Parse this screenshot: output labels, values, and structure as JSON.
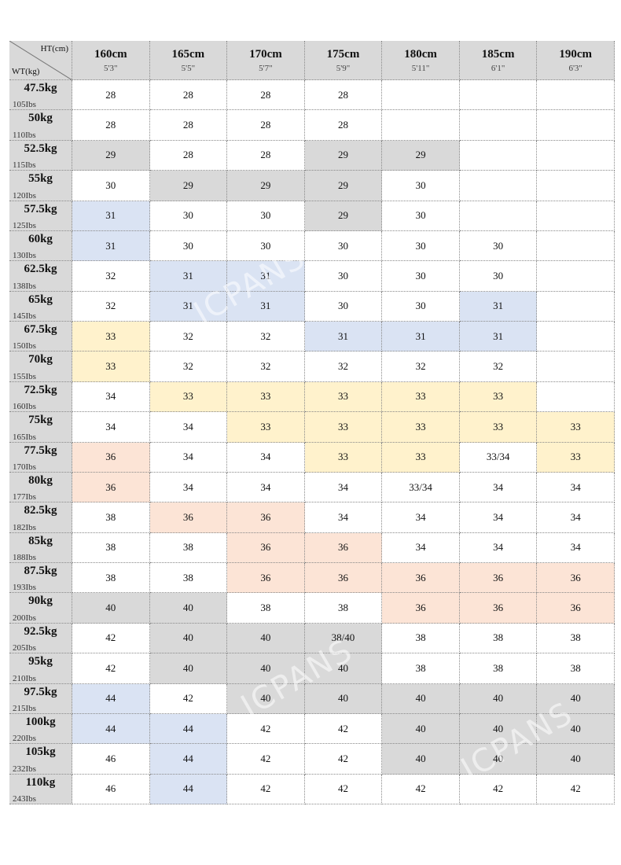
{
  "table": {
    "corner": {
      "height_label": "HT(cm)",
      "weight_label": "WT(kg)"
    },
    "columns": [
      {
        "cm": "160cm",
        "ft": "5'3\""
      },
      {
        "cm": "165cm",
        "ft": "5'5\""
      },
      {
        "cm": "170cm",
        "ft": "5'7\""
      },
      {
        "cm": "175cm",
        "ft": "5'9\""
      },
      {
        "cm": "180cm",
        "ft": "5'11\""
      },
      {
        "cm": "185cm",
        "ft": "6'1\""
      },
      {
        "cm": "190cm",
        "ft": "6'3\""
      }
    ],
    "rows": [
      {
        "kg": "47.5kg",
        "lbs": "105Ibs",
        "sizes": [
          28,
          28,
          28,
          28,
          null,
          null,
          null
        ],
        "fills": [
          null,
          null,
          null,
          null,
          null,
          null,
          null
        ]
      },
      {
        "kg": "50kg",
        "lbs": "110Ibs",
        "sizes": [
          28,
          28,
          28,
          28,
          null,
          null,
          null
        ],
        "fills": [
          null,
          null,
          null,
          null,
          null,
          null,
          null
        ]
      },
      {
        "kg": "52.5kg",
        "lbs": "115Ibs",
        "sizes": [
          29,
          28,
          28,
          29,
          29,
          null,
          null
        ],
        "fills": [
          "#d9d9d9",
          null,
          null,
          "#d9d9d9",
          "#d9d9d9",
          null,
          null
        ]
      },
      {
        "kg": "55kg",
        "lbs": "120Ibs",
        "sizes": [
          30,
          29,
          29,
          29,
          30,
          null,
          null
        ],
        "fills": [
          null,
          "#d9d9d9",
          "#d9d9d9",
          "#d9d9d9",
          null,
          null,
          null
        ]
      },
      {
        "kg": "57.5kg",
        "lbs": "125Ibs",
        "sizes": [
          31,
          30,
          30,
          29,
          30,
          null,
          null
        ],
        "fills": [
          "#dae3f3",
          null,
          null,
          "#d9d9d9",
          null,
          null,
          null
        ]
      },
      {
        "kg": "60kg",
        "lbs": "130Ibs",
        "sizes": [
          31,
          30,
          30,
          30,
          30,
          30,
          null
        ],
        "fills": [
          "#dae3f3",
          null,
          null,
          null,
          null,
          null,
          null
        ]
      },
      {
        "kg": "62.5kg",
        "lbs": "138Ibs",
        "sizes": [
          32,
          31,
          31,
          30,
          30,
          30,
          null
        ],
        "fills": [
          null,
          "#dae3f3",
          "#dae3f3",
          null,
          null,
          null,
          null
        ]
      },
      {
        "kg": "65kg",
        "lbs": "145Ibs",
        "sizes": [
          32,
          31,
          31,
          30,
          30,
          31,
          null
        ],
        "fills": [
          null,
          "#dae3f3",
          "#dae3f3",
          null,
          null,
          "#dae3f3",
          null
        ]
      },
      {
        "kg": "67.5kg",
        "lbs": "150Ibs",
        "sizes": [
          33,
          32,
          32,
          31,
          31,
          31,
          null
        ],
        "fills": [
          "#fff2cc",
          null,
          null,
          "#dae3f3",
          "#dae3f3",
          "#dae3f3",
          null
        ]
      },
      {
        "kg": "70kg",
        "lbs": "155Ibs",
        "sizes": [
          33,
          32,
          32,
          32,
          32,
          32,
          null
        ],
        "fills": [
          "#fff2cc",
          null,
          null,
          null,
          null,
          null,
          null
        ]
      },
      {
        "kg": "72.5kg",
        "lbs": "160Ibs",
        "sizes": [
          34,
          33,
          33,
          33,
          33,
          33,
          null
        ],
        "fills": [
          null,
          "#fff2cc",
          "#fff2cc",
          "#fff2cc",
          "#fff2cc",
          "#fff2cc",
          null
        ]
      },
      {
        "kg": "75kg",
        "lbs": "165Ibs",
        "sizes": [
          34,
          34,
          33,
          33,
          33,
          33,
          33
        ],
        "fills": [
          null,
          null,
          "#fff2cc",
          "#fff2cc",
          "#fff2cc",
          "#fff2cc",
          "#fff2cc"
        ]
      },
      {
        "kg": "77.5kg",
        "lbs": "170Ibs",
        "sizes": [
          36,
          34,
          34,
          33,
          33,
          "33/34",
          33
        ],
        "fills": [
          "#fce4d6",
          null,
          null,
          "#fff2cc",
          "#fff2cc",
          null,
          "#fff2cc"
        ]
      },
      {
        "kg": "80kg",
        "lbs": "177Ibs",
        "sizes": [
          36,
          34,
          34,
          34,
          "33/34",
          34,
          34
        ],
        "fills": [
          "#fce4d6",
          null,
          null,
          null,
          null,
          null,
          null
        ]
      },
      {
        "kg": "82.5kg",
        "lbs": "182Ibs",
        "sizes": [
          38,
          36,
          36,
          34,
          34,
          34,
          34
        ],
        "fills": [
          null,
          "#fce4d6",
          "#fce4d6",
          null,
          null,
          null,
          null
        ]
      },
      {
        "kg": "85kg",
        "lbs": "188Ibs",
        "sizes": [
          38,
          38,
          36,
          36,
          34,
          34,
          34
        ],
        "fills": [
          null,
          null,
          "#fce4d6",
          "#fce4d6",
          null,
          null,
          null
        ]
      },
      {
        "kg": "87.5kg",
        "lbs": "193Ibs",
        "sizes": [
          38,
          38,
          36,
          36,
          36,
          36,
          36
        ],
        "fills": [
          null,
          null,
          "#fce4d6",
          "#fce4d6",
          "#fce4d6",
          "#fce4d6",
          "#fce4d6"
        ]
      },
      {
        "kg": "90kg",
        "lbs": "200Ibs",
        "sizes": [
          40,
          40,
          38,
          38,
          36,
          36,
          36
        ],
        "fills": [
          "#d9d9d9",
          "#d9d9d9",
          null,
          null,
          "#fce4d6",
          "#fce4d6",
          "#fce4d6"
        ]
      },
      {
        "kg": "92.5kg",
        "lbs": "205Ibs",
        "sizes": [
          42,
          40,
          40,
          "38/40",
          38,
          38,
          38
        ],
        "fills": [
          null,
          "#d9d9d9",
          "#d9d9d9",
          "#d9d9d9",
          null,
          null,
          null
        ]
      },
      {
        "kg": "95kg",
        "lbs": "210Ibs",
        "sizes": [
          42,
          40,
          40,
          40,
          38,
          38,
          38
        ],
        "fills": [
          null,
          "#d9d9d9",
          "#d9d9d9",
          "#d9d9d9",
          null,
          null,
          null
        ]
      },
      {
        "kg": "97.5kg",
        "lbs": "215Ibs",
        "sizes": [
          44,
          42,
          40,
          40,
          40,
          40,
          40
        ],
        "fills": [
          "#dae3f3",
          null,
          "#d9d9d9",
          "#d9d9d9",
          "#d9d9d9",
          "#d9d9d9",
          "#d9d9d9"
        ]
      },
      {
        "kg": "100kg",
        "lbs": "220Ibs",
        "sizes": [
          44,
          44,
          42,
          42,
          40,
          40,
          40
        ],
        "fills": [
          "#dae3f3",
          "#dae3f3",
          null,
          null,
          "#d9d9d9",
          "#d9d9d9",
          "#d9d9d9"
        ]
      },
      {
        "kg": "105kg",
        "lbs": "232Ibs",
        "sizes": [
          46,
          44,
          42,
          42,
          40,
          40,
          40
        ],
        "fills": [
          null,
          "#dae3f3",
          null,
          null,
          "#d9d9d9",
          "#d9d9d9",
          "#d9d9d9"
        ]
      },
      {
        "kg": "110kg",
        "lbs": "243Ibs",
        "sizes": [
          46,
          44,
          42,
          42,
          42,
          42,
          42
        ],
        "fills": [
          null,
          "#dae3f3",
          null,
          null,
          null,
          null,
          null
        ]
      }
    ]
  },
  "watermarks": [
    "ICPANS",
    "ICPANS",
    "ICPANS"
  ]
}
